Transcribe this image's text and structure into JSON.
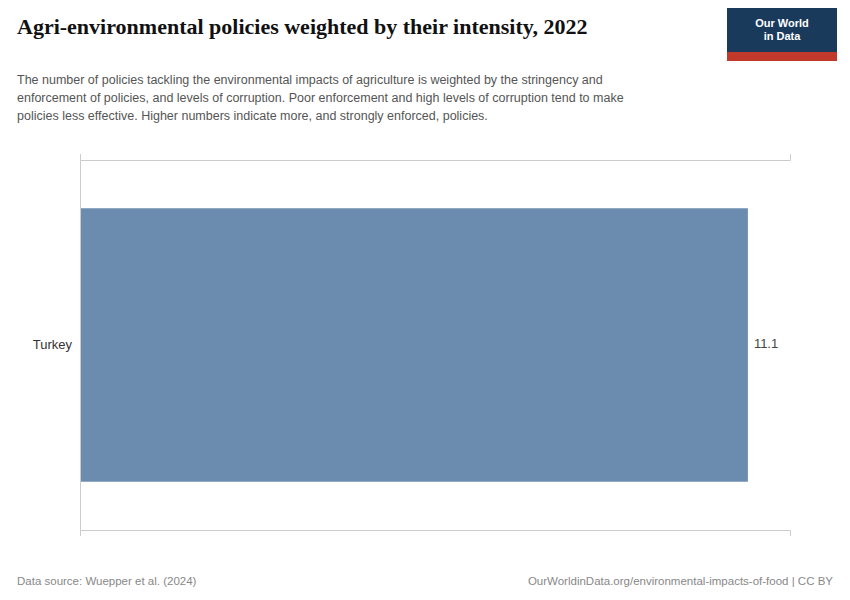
{
  "chart_data": {
    "type": "bar",
    "orientation": "horizontal",
    "title": "Agri-environmental policies weighted by their intensity, 2022",
    "subtitle": "The number of policies tackling the environmental impacts of agriculture is weighted by the stringency and\nenforcement of policies, and levels of corruption. Poor enforcement and high levels of corruption tend to make\npolicies less effective. Higher numbers indicate more, and strongly enforced, policies.",
    "categories": [
      "Turkey"
    ],
    "values": [
      11.1
    ],
    "color": "#6b8cae",
    "xlim": [
      0,
      11.8
    ],
    "xticks": [],
    "tick_labels": "y",
    "grid": false,
    "data_labels": true,
    "annotations": [
      "Data source: Wuepper et al. (2024)",
      "OurWorldinData.org/environmental-impacts-of-food | CC BY",
      "Our World\nin Data"
    ]
  }
}
